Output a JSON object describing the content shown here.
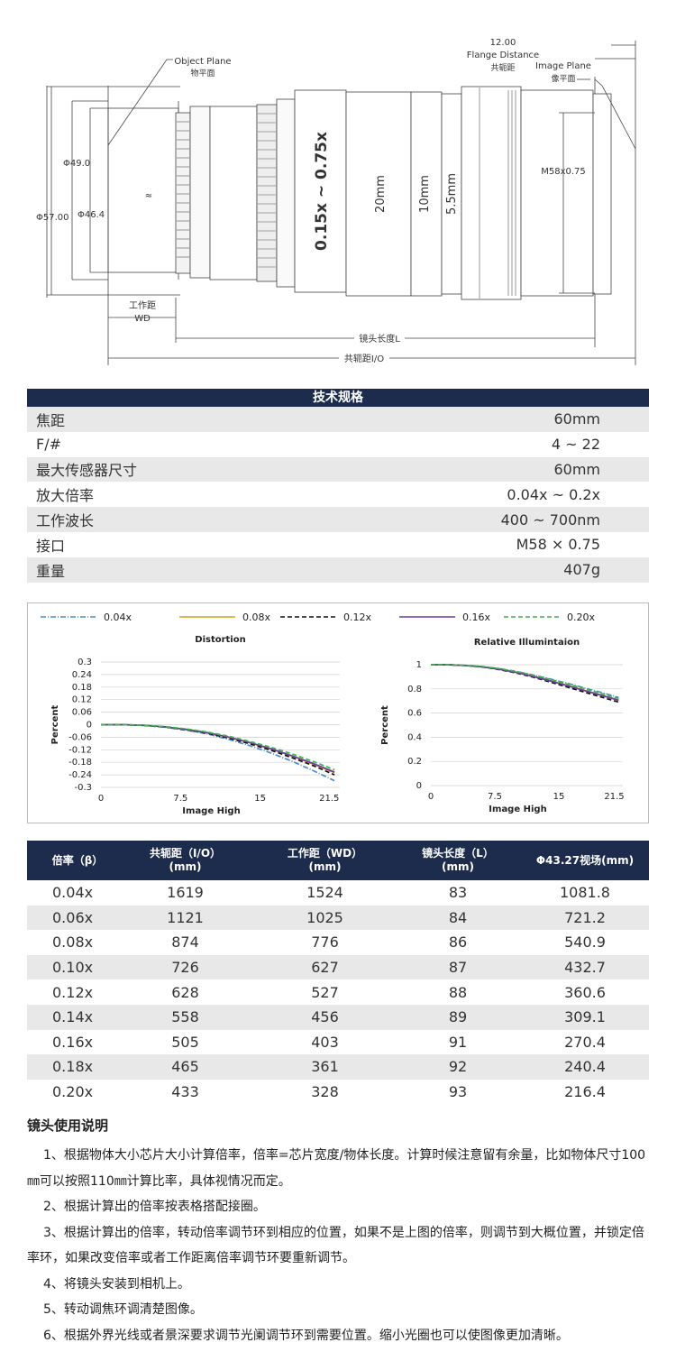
{
  "drawing": {
    "flange_value": "12.00",
    "flange_label": "Flange Distance",
    "flange_label_cn": "共轭距",
    "object_plane": "Object Plane",
    "object_plane_cn": "物平面",
    "image_plane": "Image Plane",
    "image_plane_cn": "像平面",
    "dia_49": "Φ49.0",
    "dia_46": "Φ46.4",
    "dia_57": "Φ57.00",
    "wd_cn": "工作距",
    "wd": "WD",
    "mount": "M58x0.75",
    "mag_range": "0.15x ~ 0.75x",
    "ring_20": "20mm",
    "ring_10": "10mm",
    "ring_55": "5.5mm",
    "lens_length": "镜头长度L",
    "io_length": "共轭距I/O",
    "approx": "≈"
  },
  "spec": {
    "title": "技术规格",
    "rows": [
      {
        "label": "焦距",
        "value": "60mm"
      },
      {
        "label": "F/#",
        "value": "4 ~ 22"
      },
      {
        "label": "最大传感器尺寸",
        "value": "60mm"
      },
      {
        "label": "放大倍率",
        "value": "0.04x ~ 0.2x"
      },
      {
        "label": "工作波长",
        "value": "400 ~ 700nm"
      },
      {
        "label": "接口",
        "value": "M58 × 0.75"
      },
      {
        "label": "重量",
        "value": "407g"
      }
    ]
  },
  "chart_data": [
    {
      "type": "line",
      "title": "Distortion",
      "xlabel": "Image High",
      "ylabel": "Percent",
      "xlim": [
        0,
        22.5
      ],
      "ylim": [
        -0.3,
        0.3
      ],
      "xticks": [
        "0",
        "7.5",
        "15",
        "21.5"
      ],
      "yticks": [
        "0.3",
        "0.24",
        "0.18",
        "0.12",
        "0.06",
        "0",
        "-0.06",
        "-0.12",
        "-0.18",
        "-0.24",
        "-0.3"
      ],
      "grid": true,
      "legend": "top",
      "x": [
        0,
        2,
        4,
        6,
        8,
        10,
        12,
        14,
        16,
        18,
        20,
        22
      ],
      "series": [
        {
          "name": "0.04x",
          "color": "#4a8fc9",
          "dash": "6,2,1,2",
          "values": [
            0,
            0,
            -0.004,
            -0.012,
            -0.026,
            -0.044,
            -0.07,
            -0.1,
            -0.135,
            -0.175,
            -0.22,
            -0.268
          ]
        },
        {
          "name": "0.08x",
          "color": "#d4a017",
          "dash": "",
          "values": [
            0,
            0,
            -0.003,
            -0.01,
            -0.022,
            -0.038,
            -0.06,
            -0.086,
            -0.116,
            -0.15,
            -0.188,
            -0.23
          ]
        },
        {
          "name": "0.12x",
          "color": "#111111",
          "dash": "5,3",
          "values": [
            0,
            0,
            -0.003,
            -0.011,
            -0.024,
            -0.041,
            -0.064,
            -0.091,
            -0.122,
            -0.158,
            -0.196,
            -0.24
          ]
        },
        {
          "name": "0.16x",
          "color": "#6a3d9a",
          "dash": "",
          "values": [
            0,
            0,
            -0.003,
            -0.01,
            -0.022,
            -0.038,
            -0.059,
            -0.085,
            -0.115,
            -0.149,
            -0.186,
            -0.227
          ]
        },
        {
          "name": "0.20x",
          "color": "#3cb44b",
          "dash": "5,3",
          "values": [
            0,
            0,
            -0.003,
            -0.009,
            -0.02,
            -0.035,
            -0.055,
            -0.08,
            -0.108,
            -0.14,
            -0.176,
            -0.216
          ]
        }
      ]
    },
    {
      "type": "line",
      "title": "Relative Illumintaion",
      "xlabel": "Image High",
      "ylabel": "Percent",
      "xlim": [
        0,
        22.5
      ],
      "ylim": [
        0,
        1
      ],
      "xticks": [
        "0",
        "7.5",
        "15",
        "21.5"
      ],
      "yticks": [
        "1",
        "0.8",
        "0.6",
        "0.4",
        "0.2",
        "0"
      ],
      "grid": true,
      "x": [
        0,
        2,
        4,
        6,
        8,
        10,
        12,
        14,
        16,
        18,
        20,
        22
      ],
      "series": [
        {
          "name": "0.04x",
          "color": "#4a8fc9",
          "dash": "6,2,1,2",
          "values": [
            1,
            1,
            0.995,
            0.985,
            0.968,
            0.945,
            0.915,
            0.882,
            0.846,
            0.808,
            0.77,
            0.73
          ]
        },
        {
          "name": "0.08x",
          "color": "#d4a017",
          "dash": "",
          "values": [
            1,
            1,
            0.994,
            0.983,
            0.964,
            0.938,
            0.905,
            0.868,
            0.828,
            0.788,
            0.748,
            0.708
          ]
        },
        {
          "name": "0.12x",
          "color": "#111111",
          "dash": "5,3",
          "values": [
            1,
            1,
            0.993,
            0.981,
            0.96,
            0.932,
            0.897,
            0.857,
            0.815,
            0.773,
            0.732,
            0.69
          ]
        },
        {
          "name": "0.16x",
          "color": "#6a3d9a",
          "dash": "",
          "values": [
            1,
            1,
            0.994,
            0.983,
            0.963,
            0.936,
            0.903,
            0.866,
            0.826,
            0.786,
            0.746,
            0.706
          ]
        },
        {
          "name": "0.20x",
          "color": "#3cb44b",
          "dash": "5,3",
          "values": [
            1,
            1,
            0.995,
            0.986,
            0.968,
            0.944,
            0.913,
            0.878,
            0.84,
            0.801,
            0.762,
            0.722
          ]
        }
      ]
    }
  ],
  "mag_table": {
    "headers": [
      {
        "l1": "倍率（β）",
        "l2": ""
      },
      {
        "l1": "共轭距（I/O）",
        "l2": "(mm)"
      },
      {
        "l1": "工作距（WD）",
        "l2": "(mm)"
      },
      {
        "l1": "镜头长度（L）",
        "l2": "(mm)"
      },
      {
        "l1": "Φ43.27视场(mm)",
        "l2": ""
      }
    ],
    "rows": [
      [
        "0.04x",
        "1619",
        "1524",
        "83",
        "1081.8"
      ],
      [
        "0.06x",
        "1121",
        "1025",
        "84",
        "721.2"
      ],
      [
        "0.08x",
        "874",
        "776",
        "86",
        "540.9"
      ],
      [
        "0.10x",
        "726",
        "627",
        "87",
        "432.7"
      ],
      [
        "0.12x",
        "628",
        "527",
        "88",
        "360.6"
      ],
      [
        "0.14x",
        "558",
        "456",
        "89",
        "309.1"
      ],
      [
        "0.16x",
        "505",
        "403",
        "91",
        "270.4"
      ],
      [
        "0.18x",
        "465",
        "361",
        "92",
        "240.4"
      ],
      [
        "0.20x",
        "433",
        "328",
        "93",
        "216.4"
      ]
    ]
  },
  "instructions": {
    "title": "镜头使用说明",
    "items": [
      "1、根据物体大小芯片大小计算倍率，倍率=芯片宽度/物体长度。计算时候注意留有余量，比如物体尺寸100㎜可以按照110㎜计算比率，具体视情况而定。",
      "2、根据计算出的倍率按表格搭配接圈。",
      "3、根据计算出的倍率，转动倍率调节环到相应的位置，如果不是上图的倍率，则调节到大概位置，并锁定倍率环，如果改变倍率或者工作距离倍率调节环要重新调节。",
      "4、将镜头安装到相机上。",
      "5、转动调焦环调清楚图像。",
      "6、根据外界光线或者景深要求调节光阑调节环到需要位置。缩小光圈也可以使图像更加清晰。"
    ]
  }
}
